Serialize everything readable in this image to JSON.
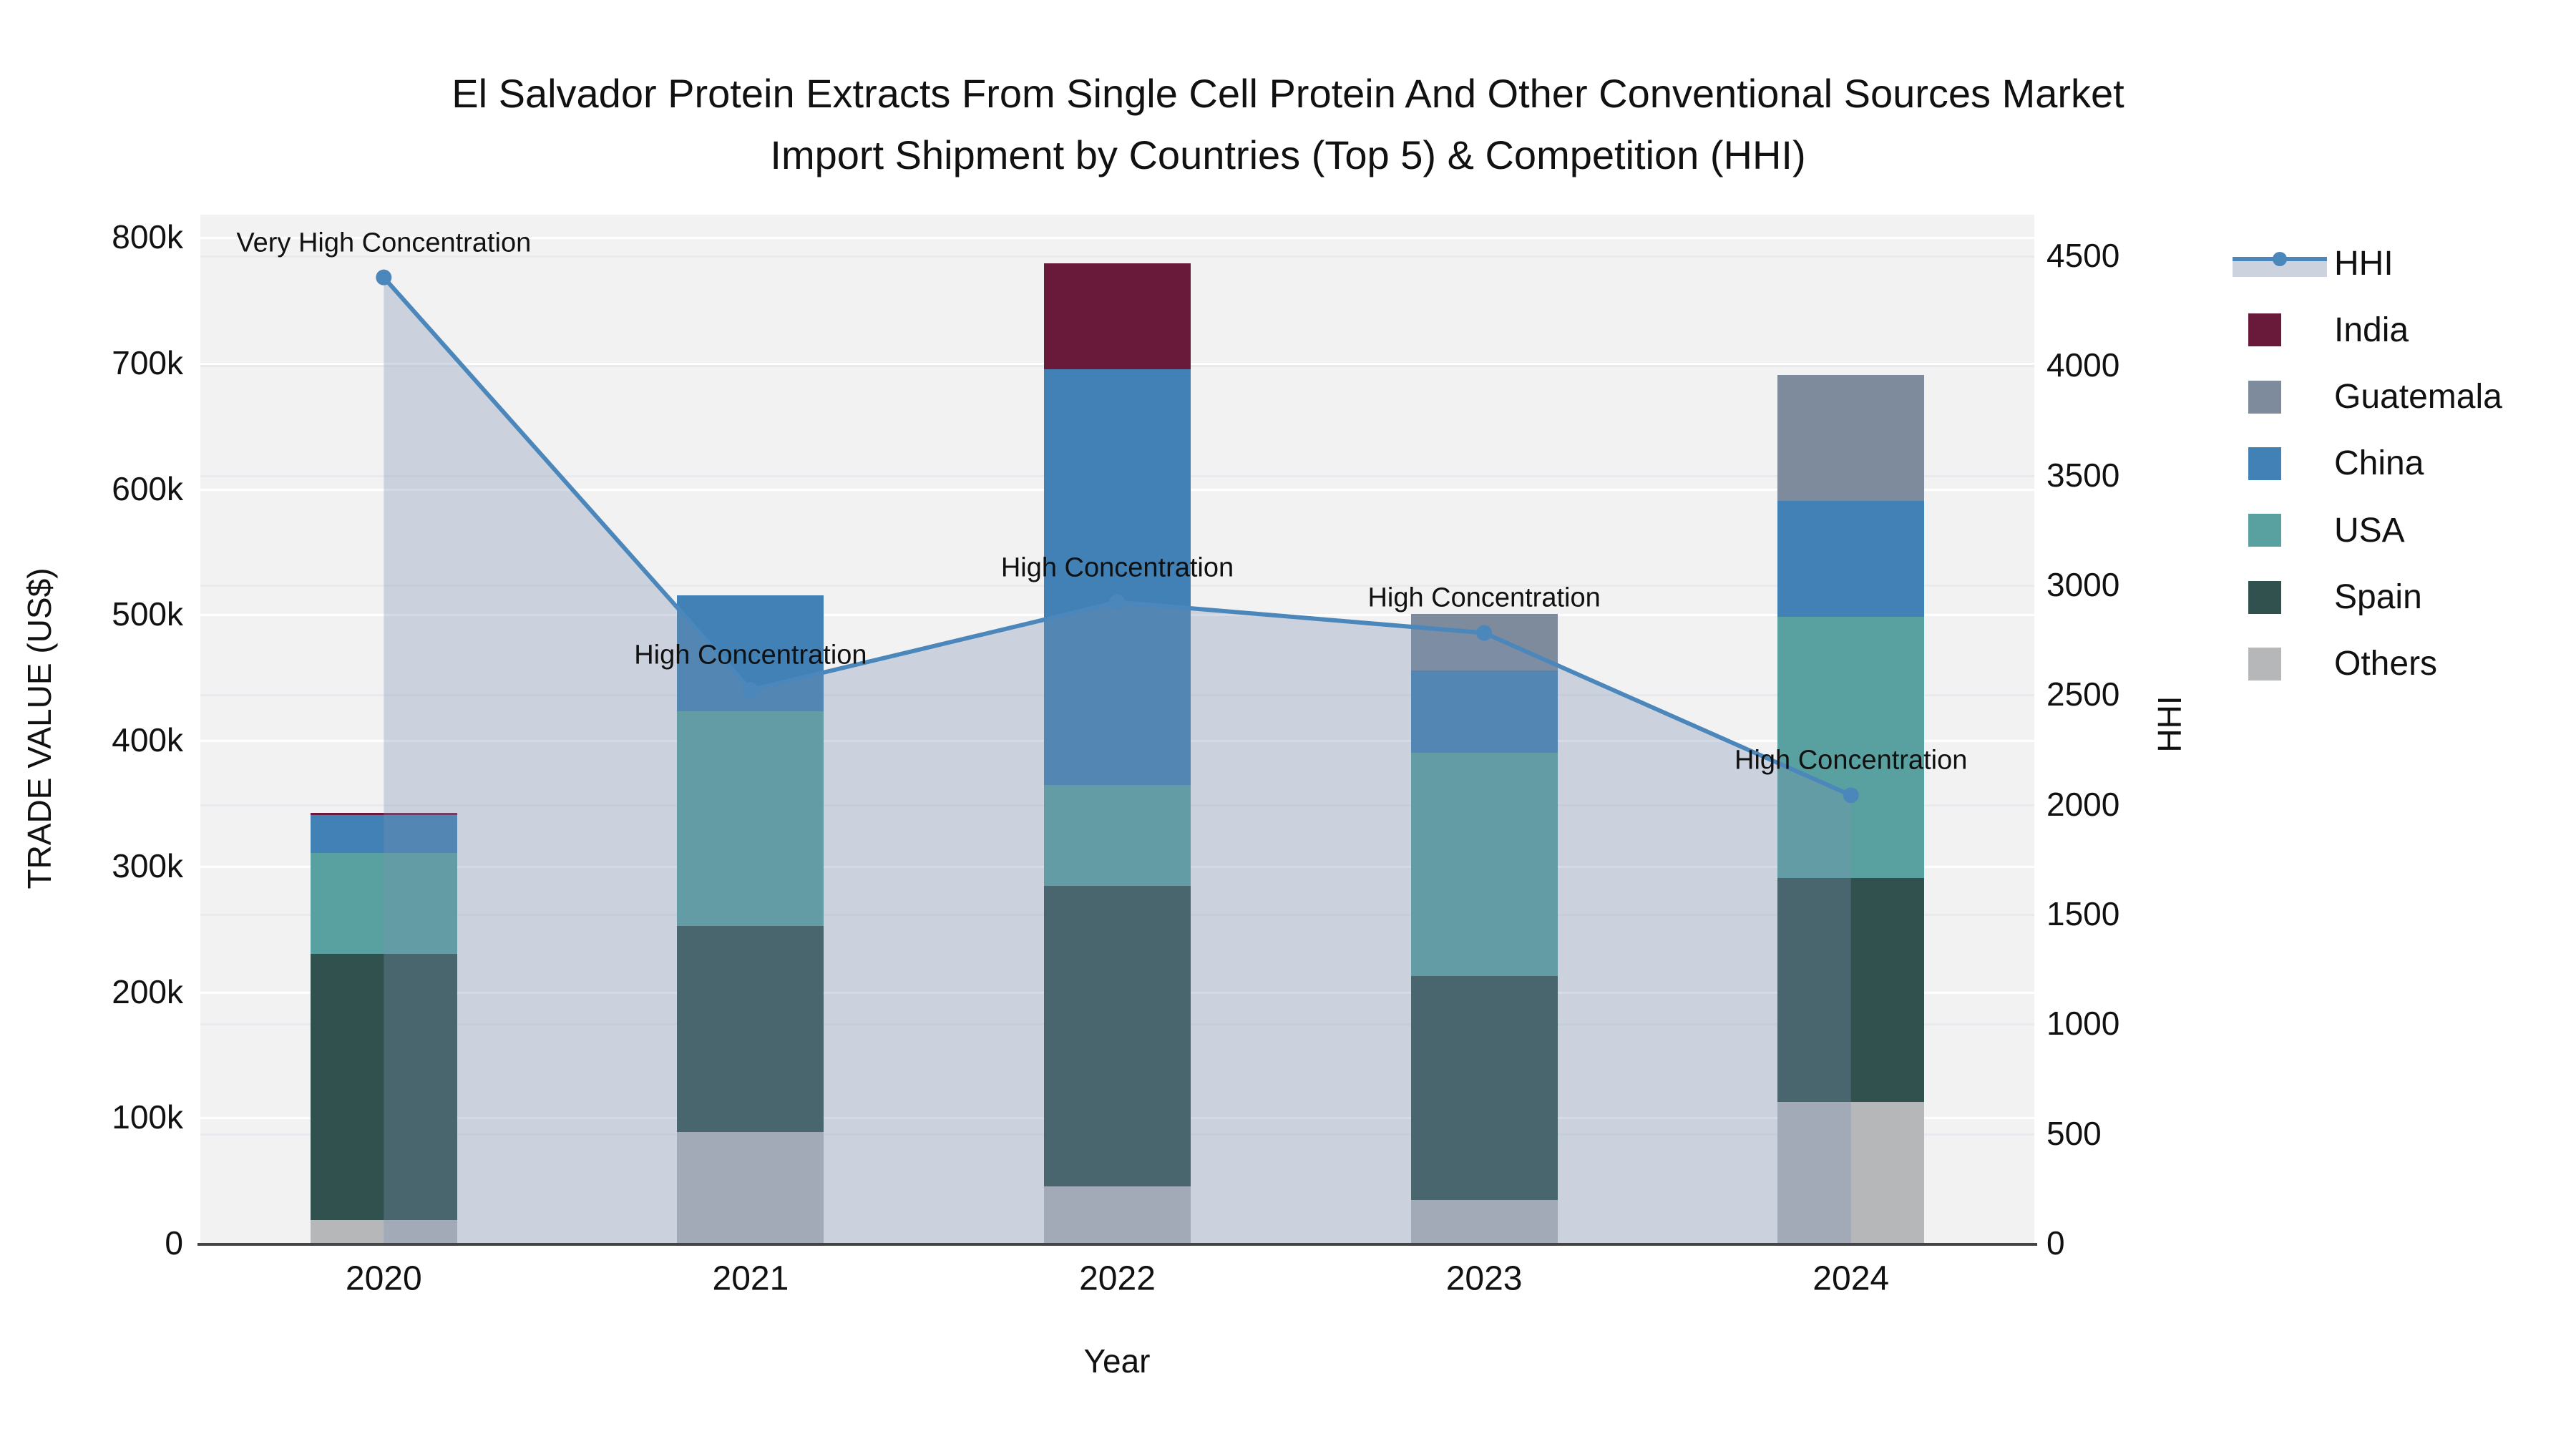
{
  "title": {
    "line1": "El Salvador Protein Extracts From Single Cell Protein And Other Conventional Sources Market",
    "line2": "Import Shipment by Countries (Top 5) & Competition (HHI)"
  },
  "axes": {
    "y_left": {
      "title": "TRADE VALUE (US$)",
      "ticks": [
        "0",
        "100k",
        "200k",
        "300k",
        "400k",
        "500k",
        "600k",
        "700k",
        "800k"
      ],
      "max": 800000
    },
    "y_right": {
      "title": "HHI",
      "ticks": [
        "0",
        "500",
        "1000",
        "1500",
        "2000",
        "2500",
        "3000",
        "3500",
        "4000",
        "4500"
      ],
      "max": 4500
    },
    "x": {
      "title": "Year",
      "categories": [
        "2020",
        "2021",
        "2022",
        "2023",
        "2024"
      ]
    }
  },
  "legend": {
    "items": [
      {
        "label": "HHI",
        "type": "line",
        "color": "#4b87ba"
      },
      {
        "label": "India",
        "type": "square",
        "color": "#69193a"
      },
      {
        "label": "Guatemala",
        "type": "square",
        "color": "#7d8b9d"
      },
      {
        "label": "China",
        "type": "square",
        "color": "#4181b5"
      },
      {
        "label": "USA",
        "type": "square",
        "color": "#58a1a0"
      },
      {
        "label": "Spain",
        "type": "square",
        "color": "#30514d"
      },
      {
        "label": "Others",
        "type": "square",
        "color": "#b5b7b9"
      }
    ]
  },
  "annotations": [
    {
      "x": "2020",
      "text": "Very High Concentration"
    },
    {
      "x": "2021",
      "text": "High Concentration"
    },
    {
      "x": "2022",
      "text": "High Concentration"
    },
    {
      "x": "2023",
      "text": "High Concentration"
    },
    {
      "x": "2024",
      "text": "High Concentration"
    }
  ],
  "colors": {
    "series": {
      "India": "#69193a",
      "Guatemala": "#7d8b9d",
      "China": "#4181b5",
      "USA": "#58a1a0",
      "Spain": "#30514d",
      "Others": "#b5b7b9"
    },
    "hhi_line": "#4b87ba",
    "hhi_fill": "rgba(124,147,178,0.33)",
    "plot_bg": "#f2f2f3",
    "grid_left": "#ffffff",
    "grid_right": "#e9eaee",
    "axis_line": "#444444"
  },
  "chart_data": [
    {
      "type": "bar",
      "stacked": true,
      "categories": [
        "2020",
        "2021",
        "2022",
        "2023",
        "2024"
      ],
      "series": [
        {
          "name": "Others",
          "values": [
            18000,
            88000,
            45000,
            34000,
            112000
          ]
        },
        {
          "name": "Spain",
          "values": [
            212000,
            164000,
            239000,
            178000,
            178000
          ]
        },
        {
          "name": "USA",
          "values": [
            80000,
            171000,
            80000,
            178000,
            208000
          ]
        },
        {
          "name": "China",
          "values": [
            30000,
            92000,
            331000,
            65000,
            92000
          ]
        },
        {
          "name": "Guatemala",
          "values": [
            0,
            0,
            0,
            45000,
            100000
          ]
        },
        {
          "name": "India",
          "values": [
            2000,
            0,
            84000,
            0,
            0
          ]
        }
      ],
      "totals": [
        342000,
        515000,
        779000,
        500000,
        690000
      ],
      "title": "Import Shipment by Countries (Top 5)",
      "xlabel": "Year",
      "ylabel": "TRADE VALUE (US$)",
      "ylim": [
        0,
        800000
      ],
      "grid": true,
      "legend_position": "right"
    },
    {
      "type": "line",
      "name": "HHI",
      "x": [
        "2020",
        "2021",
        "2022",
        "2023",
        "2024"
      ],
      "values": [
        4400,
        2520,
        2920,
        2780,
        2040
      ],
      "area_fill": true,
      "markers": true,
      "ylabel": "HHI",
      "ylim": [
        0,
        4500
      ],
      "point_labels": [
        "Very High Concentration",
        "High Concentration",
        "High Concentration",
        "High Concentration",
        "High Concentration"
      ]
    }
  ]
}
